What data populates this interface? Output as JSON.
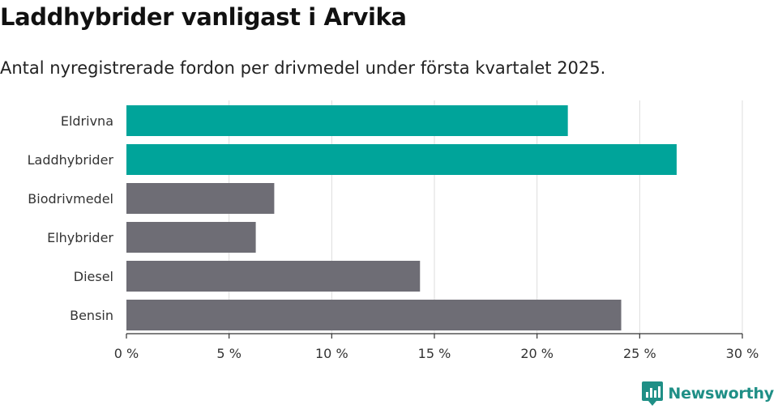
{
  "title": "Laddhybrider vanligast i Arvika",
  "subtitle": "Antal nyregistrerade fordon per drivmedel under första kvartalet 2025.",
  "brand": {
    "name": "Newsworthy",
    "icon": "newsworthy-logo-icon",
    "color": "#1f8f86"
  },
  "colors": {
    "highlight": "#00a49a",
    "default": "#6e6d75",
    "grid": "#dddddd",
    "axis": "#333333"
  },
  "chart_data": {
    "type": "bar",
    "orientation": "horizontal",
    "categories": [
      "Eldrivna",
      "Laddhybrider",
      "Biodrivmedel",
      "Elhybrider",
      "Diesel",
      "Bensin"
    ],
    "values": [
      21.5,
      26.8,
      7.2,
      6.3,
      14.3,
      24.1
    ],
    "highlighted": [
      "Eldrivna",
      "Laddhybrider"
    ],
    "xlim": [
      0,
      30
    ],
    "xticks": [
      0,
      5,
      10,
      15,
      20,
      25,
      30
    ],
    "xtick_labels": [
      "0 %",
      "5 %",
      "10 %",
      "15 %",
      "20 %",
      "25 %",
      "30 %"
    ],
    "grid": "vertical"
  }
}
